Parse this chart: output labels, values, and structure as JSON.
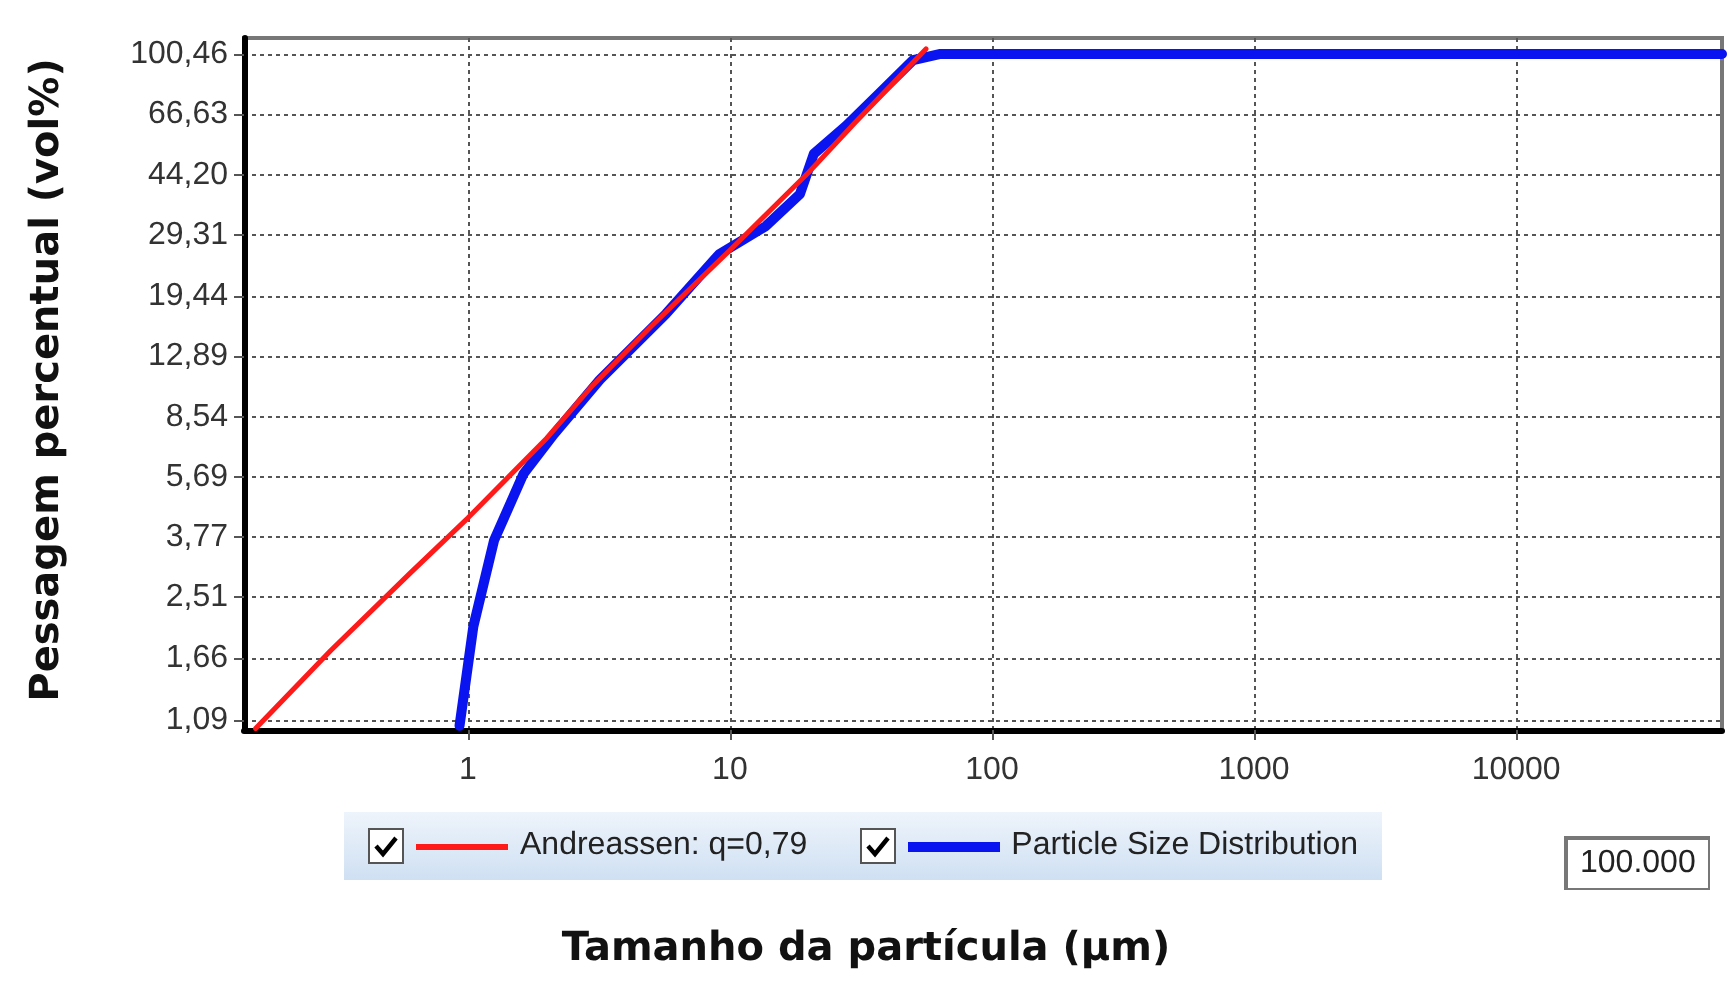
{
  "chart_data": {
    "type": "line",
    "xlabel": "Tamanho da partícula (µm)",
    "ylabel": "Pessagem percentual (vol%)",
    "log": "xy",
    "xlim": [
      0.14,
      61000
    ],
    "xticks": [
      1,
      10,
      100,
      1000,
      10000
    ],
    "ylim": [
      1.02,
      112
    ],
    "yticks": [
      {
        "value": 1.09,
        "label": "1,09"
      },
      {
        "value": 1.66,
        "label": "1,66"
      },
      {
        "value": 2.51,
        "label": "2,51"
      },
      {
        "value": 3.77,
        "label": "3,77"
      },
      {
        "value": 5.69,
        "label": "5,69"
      },
      {
        "value": 8.54,
        "label": "8,54"
      },
      {
        "value": 12.89,
        "label": "12,89"
      },
      {
        "value": 19.44,
        "label": "19,44"
      },
      {
        "value": 29.31,
        "label": "29,31"
      },
      {
        "value": 44.2,
        "label": "44,20"
      },
      {
        "value": 66.63,
        "label": "66,63"
      },
      {
        "value": 100.46,
        "label": "100,46"
      }
    ],
    "grid": true,
    "legend": "bottom",
    "marker": "none",
    "line_style": "solid",
    "annotations": [
      "100.000"
    ],
    "series": [
      {
        "name": "Andreassen:  q=0,79",
        "color": "#ff1a1a",
        "x": [
          0.155,
          0.3,
          0.6,
          1,
          2,
          3,
          5,
          10,
          20,
          30,
          56
        ],
        "values": [
          1.03,
          1.75,
          2.95,
          4.3,
          7.4,
          10.6,
          15.8,
          26.5,
          45,
          63,
          104
        ]
      },
      {
        "name": "Particle Size Distribution",
        "color": "#0a14f0",
        "x": [
          0.93,
          1.05,
          1.26,
          1.63,
          2.13,
          3.19,
          5.7,
          9.1,
          13.7,
          18.5,
          20.9,
          27.7,
          37,
          50,
          63,
          87,
          1000,
          10000,
          61000
        ],
        "values": [
          1.05,
          2.06,
          3.7,
          5.8,
          7.6,
          11,
          17.2,
          25.8,
          31.2,
          38.8,
          51,
          61.6,
          76.6,
          96.4,
          100.46,
          100.46,
          100.46,
          100.46,
          100.46
        ]
      }
    ]
  }
}
